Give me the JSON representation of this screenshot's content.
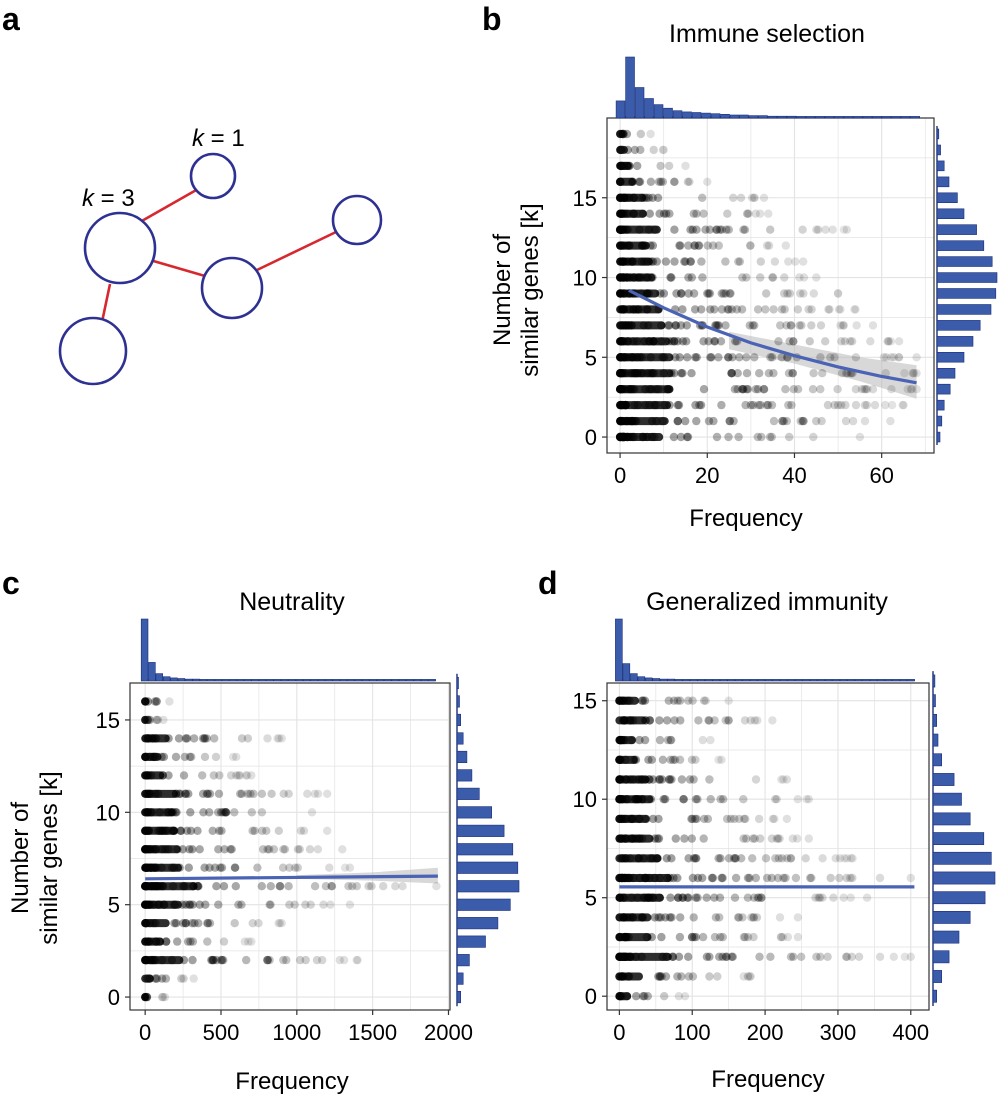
{
  "figure": {
    "panel_labels": [
      "a",
      "b",
      "c",
      "d"
    ]
  },
  "network": {
    "k_label_prefix": "k",
    "k1_label": " = 1",
    "k3_label": " = 3",
    "node_color": "#2e3192",
    "edge_color": "#d7282f"
  },
  "colors": {
    "histogram": "#3b5bab",
    "histogram_edge": "#1c2f7a",
    "trend": "#4a63b5",
    "points": "#000000",
    "grid": "#e3e3e3"
  },
  "chart_data": [
    {
      "type": "scatter",
      "panel": "b",
      "title": "Immune selection",
      "xlabel": "Frequency",
      "ylabel_line1": "Number of",
      "ylabel_line2": "similar genes [k]",
      "xlim": [
        -3,
        72
      ],
      "ylim": [
        -1,
        20
      ],
      "xticks": [
        0,
        20,
        40,
        60
      ],
      "yticks": [
        0,
        5,
        10,
        15
      ],
      "trend": {
        "x": [
          2,
          10,
          20,
          30,
          40,
          50,
          60,
          68
        ],
        "y": [
          9.2,
          8.1,
          6.9,
          5.9,
          5.1,
          4.4,
          3.8,
          3.4
        ]
      },
      "ci_band": {
        "x": [
          25,
          40,
          55,
          68
        ],
        "lower": [
          5.5,
          4.6,
          3.5,
          2.4
        ],
        "upper": [
          6.6,
          5.8,
          5.0,
          4.5
        ]
      },
      "rows": [
        {
          "k": 0,
          "max": 55
        },
        {
          "k": 1,
          "max": 62
        },
        {
          "k": 2,
          "max": 65
        },
        {
          "k": 3,
          "max": 68
        },
        {
          "k": 4,
          "max": 68
        },
        {
          "k": 5,
          "max": 68
        },
        {
          "k": 6,
          "max": 64
        },
        {
          "k": 7,
          "max": 58
        },
        {
          "k": 8,
          "max": 54
        },
        {
          "k": 9,
          "max": 50
        },
        {
          "k": 10,
          "max": 45
        },
        {
          "k": 11,
          "max": 42
        },
        {
          "k": 12,
          "max": 38
        },
        {
          "k": 13,
          "max": 52
        },
        {
          "k": 14,
          "max": 34
        },
        {
          "k": 15,
          "max": 33
        },
        {
          "k": 16,
          "max": 20
        },
        {
          "k": 17,
          "max": 15
        },
        {
          "k": 18,
          "max": 10
        },
        {
          "k": 19,
          "max": 7
        }
      ],
      "freq_hist": [
        0.28,
        1.0,
        0.5,
        0.32,
        0.22,
        0.16,
        0.12,
        0.1,
        0.09,
        0.08,
        0.07,
        0.06,
        0.05,
        0.05,
        0.04,
        0.04,
        0.03,
        0.03,
        0.03,
        0.02,
        0.02,
        0.02,
        0.02,
        0.01,
        0.01,
        0.01,
        0.01,
        0.01,
        0.01,
        0.01,
        0.01,
        0.01
      ],
      "k_hist": [
        0.05,
        0.08,
        0.12,
        0.22,
        0.3,
        0.45,
        0.6,
        0.72,
        0.9,
        0.98,
        1.0,
        0.92,
        0.78,
        0.66,
        0.45,
        0.34,
        0.2,
        0.12,
        0.06,
        0.03
      ]
    },
    {
      "type": "scatter",
      "panel": "c",
      "title": "Neutrality",
      "xlabel": "Frequency",
      "ylabel_line1": "Number of",
      "ylabel_line2": "similar genes [k]",
      "xlim": [
        -100,
        2010
      ],
      "ylim": [
        -0.7,
        17
      ],
      "xticks": [
        0,
        500,
        1000,
        1500,
        2000
      ],
      "yticks": [
        0,
        5,
        10,
        15
      ],
      "trend": {
        "x": [
          0,
          1930
        ],
        "y": [
          6.4,
          6.55
        ]
      },
      "ci_band": {
        "x": [
          1000,
          1500,
          1930
        ],
        "lower": [
          6.4,
          6.3,
          6.15
        ],
        "upper": [
          6.6,
          6.75,
          7.0
        ]
      },
      "rows": [
        {
          "k": 0,
          "max": 130
        },
        {
          "k": 1,
          "max": 320
        },
        {
          "k": 2,
          "max": 1400
        },
        {
          "k": 3,
          "max": 700
        },
        {
          "k": 4,
          "max": 900
        },
        {
          "k": 5,
          "max": 1350
        },
        {
          "k": 6,
          "max": 1920
        },
        {
          "k": 7,
          "max": 1350
        },
        {
          "k": 8,
          "max": 1300
        },
        {
          "k": 9,
          "max": 1200
        },
        {
          "k": 10,
          "max": 1100
        },
        {
          "k": 11,
          "max": 1200
        },
        {
          "k": 12,
          "max": 700
        },
        {
          "k": 13,
          "max": 600
        },
        {
          "k": 14,
          "max": 900
        },
        {
          "k": 15,
          "max": 120
        },
        {
          "k": 16,
          "max": 160
        }
      ],
      "freq_hist": [
        1.0,
        0.3,
        0.12,
        0.07,
        0.05,
        0.04,
        0.03,
        0.03,
        0.02,
        0.02,
        0.02,
        0.02,
        0.01,
        0.01,
        0.01,
        0.01,
        0.01,
        0.01,
        0.01,
        0.01,
        0.01,
        0.01,
        0.01,
        0.01,
        0.01,
        0.01,
        0.01,
        0.01,
        0.01,
        0.01,
        0.01,
        0.01,
        0.01,
        0.01,
        0.01,
        0.01,
        0.01,
        0.01,
        0.01,
        0.01
      ],
      "k_hist": [
        0.06,
        0.1,
        0.2,
        0.46,
        0.66,
        0.86,
        1.0,
        0.98,
        0.9,
        0.76,
        0.56,
        0.36,
        0.24,
        0.16,
        0.1,
        0.06,
        0.04,
        0.02
      ]
    },
    {
      "type": "scatter",
      "panel": "d",
      "title": "Generalized immunity",
      "xlabel": "Frequency",
      "ylabel_line1": "",
      "ylabel_line2": "",
      "xlim": [
        -17,
        425
      ],
      "ylim": [
        -0.7,
        15.9
      ],
      "xticks": [
        0,
        100,
        200,
        300,
        400
      ],
      "yticks": [
        0,
        5,
        10,
        15
      ],
      "trend": {
        "x": [
          0,
          405
        ],
        "y": [
          5.55,
          5.55
        ]
      },
      "ci_band": null,
      "rows": [
        {
          "k": 0,
          "max": 90
        },
        {
          "k": 1,
          "max": 180
        },
        {
          "k": 2,
          "max": 400
        },
        {
          "k": 3,
          "max": 245
        },
        {
          "k": 4,
          "max": 245
        },
        {
          "k": 5,
          "max": 340
        },
        {
          "k": 6,
          "max": 400
        },
        {
          "k": 7,
          "max": 320
        },
        {
          "k": 8,
          "max": 260
        },
        {
          "k": 9,
          "max": 230
        },
        {
          "k": 10,
          "max": 260
        },
        {
          "k": 11,
          "max": 230
        },
        {
          "k": 12,
          "max": 140
        },
        {
          "k": 13,
          "max": 125
        },
        {
          "k": 14,
          "max": 210
        },
        {
          "k": 15,
          "max": 150
        }
      ],
      "freq_hist": [
        1.0,
        0.28,
        0.12,
        0.07,
        0.05,
        0.04,
        0.03,
        0.03,
        0.02,
        0.02,
        0.02,
        0.02,
        0.01,
        0.01,
        0.01,
        0.01,
        0.01,
        0.01,
        0.01,
        0.01,
        0.01,
        0.01,
        0.01,
        0.01,
        0.01,
        0.01,
        0.01,
        0.01,
        0.01,
        0.01,
        0.01,
        0.01,
        0.01,
        0.01,
        0.01,
        0.01,
        0.01,
        0.01,
        0.01,
        0.01
      ],
      "k_hist": [
        0.06,
        0.14,
        0.26,
        0.42,
        0.6,
        0.84,
        1.0,
        0.94,
        0.82,
        0.6,
        0.46,
        0.34,
        0.14,
        0.08,
        0.06,
        0.04,
        0.03
      ]
    }
  ]
}
